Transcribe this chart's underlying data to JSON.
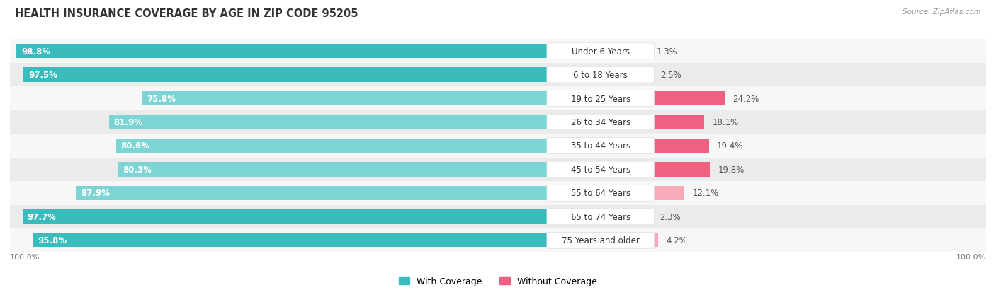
{
  "title": "HEALTH INSURANCE COVERAGE BY AGE IN ZIP CODE 95205",
  "source": "Source: ZipAtlas.com",
  "categories": [
    "Under 6 Years",
    "6 to 18 Years",
    "19 to 25 Years",
    "26 to 34 Years",
    "35 to 44 Years",
    "45 to 54 Years",
    "55 to 64 Years",
    "65 to 74 Years",
    "75 Years and older"
  ],
  "with_coverage": [
    98.8,
    97.5,
    75.8,
    81.9,
    80.6,
    80.3,
    87.9,
    97.7,
    95.8
  ],
  "without_coverage": [
    1.3,
    2.5,
    24.2,
    18.1,
    19.4,
    19.8,
    12.1,
    2.3,
    4.2
  ],
  "color_with_dark": "#3BBCBC",
  "color_with_light": "#7DD4D4",
  "color_without_dark": "#F06080",
  "color_without_light": "#F8AABB",
  "bg_row_light": "#EBEBEB",
  "bg_row_white": "#F7F7F7",
  "bar_height": 0.62,
  "label_fontsize": 8.5,
  "title_fontsize": 10.5,
  "legend_fontsize": 9,
  "woc_dark_threshold": 15,
  "wc_dark_threshold": 92
}
